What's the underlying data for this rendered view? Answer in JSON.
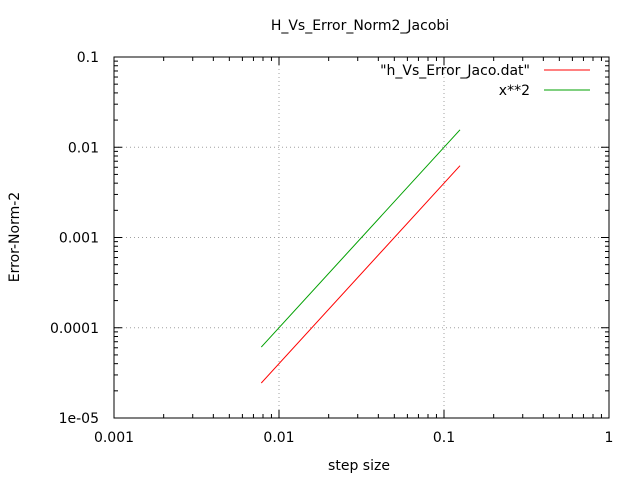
{
  "chart_data": {
    "type": "line",
    "title": "H_Vs_Error_Norm2_Jacobi",
    "xlabel": "step size",
    "ylabel": "Error-Norm-2",
    "xscale": "log",
    "yscale": "log",
    "xlim": [
      0.001,
      1
    ],
    "ylim": [
      1e-05,
      0.1
    ],
    "x_ticks": [
      {
        "value": 0.001,
        "label": "0.001"
      },
      {
        "value": 0.01,
        "label": "0.01"
      },
      {
        "value": 0.1,
        "label": "0.1"
      },
      {
        "value": 1,
        "label": "1"
      }
    ],
    "y_ticks": [
      {
        "value": 1e-05,
        "label": "1e-05"
      },
      {
        "value": 0.0001,
        "label": "0.0001"
      },
      {
        "value": 0.001,
        "label": "0.001"
      },
      {
        "value": 0.01,
        "label": "0.01"
      },
      {
        "value": 0.1,
        "label": "0.1"
      }
    ],
    "grid": true,
    "legend_position": "top-right",
    "series": [
      {
        "name": "\"h_Vs_Error_Jaco.dat\"",
        "color": "#ff0000",
        "x": [
          0.0078125,
          0.125
        ],
        "y": [
          2.44e-05,
          0.00625
        ]
      },
      {
        "name": "x**2",
        "color": "#00a000",
        "x": [
          0.0078125,
          0.125
        ],
        "y": [
          6.1e-05,
          0.015625
        ]
      }
    ]
  }
}
